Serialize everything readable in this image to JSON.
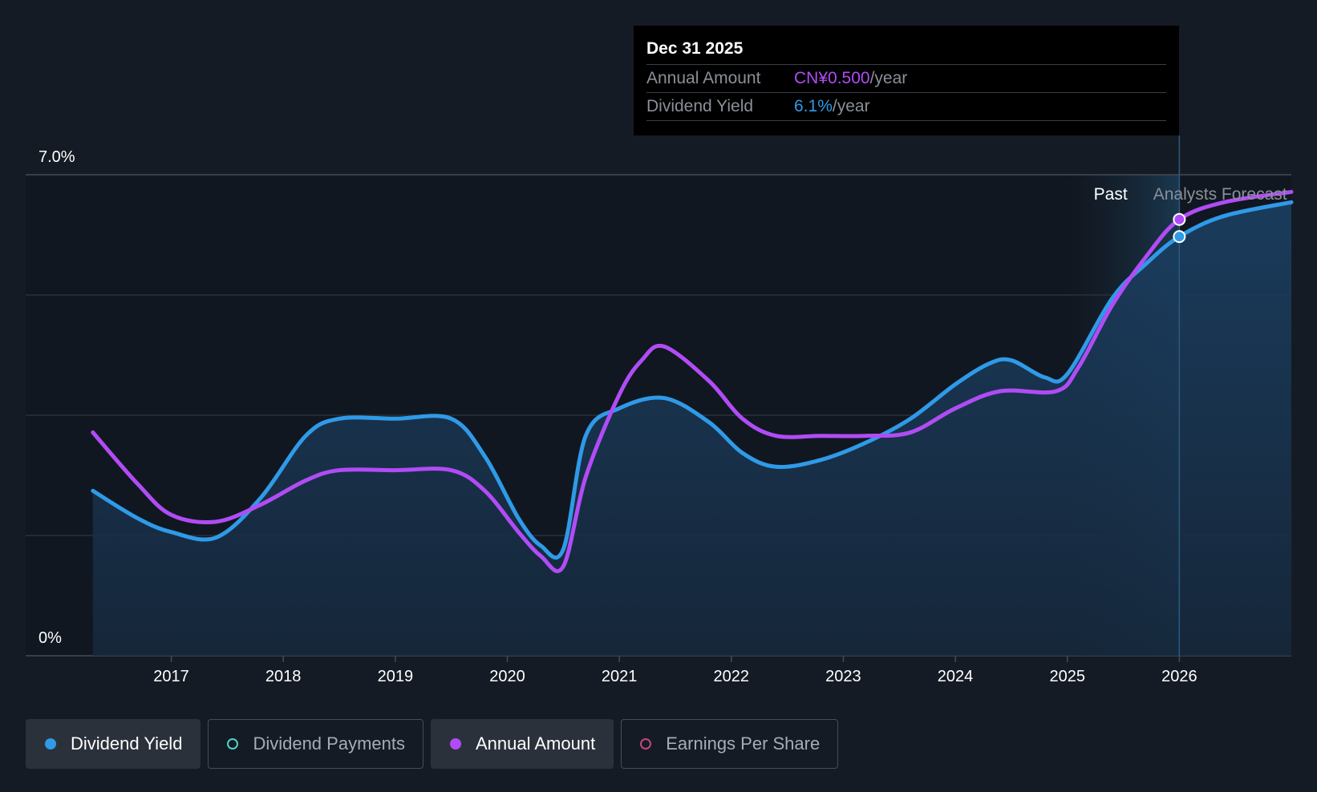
{
  "colors": {
    "background": "#151b24",
    "yield": "#2f9ae8",
    "amount": "#b04cf5",
    "payments": "#4fd1c5",
    "eps": "#c2467a"
  },
  "tooltip": {
    "date": "Dec 31 2025",
    "rows": [
      {
        "label": "Annual Amount",
        "value": "CN¥0.500",
        "unit": "/year"
      },
      {
        "label": "Dividend Yield",
        "value": "6.1%",
        "unit": "/year"
      }
    ]
  },
  "regions": {
    "past_label": "Past",
    "forecast_label": "Analysts Forecast"
  },
  "legend": [
    {
      "label": "Dividend Yield",
      "icon": "filled-dot",
      "color": "#2f9ae8",
      "active": true
    },
    {
      "label": "Dividend Payments",
      "icon": "hollow-dot",
      "color": "#4fd1c5",
      "active": false
    },
    {
      "label": "Annual Amount",
      "icon": "filled-dot",
      "color": "#b04cf5",
      "active": true
    },
    {
      "label": "Earnings Per Share",
      "icon": "hollow-dot",
      "color": "#c2467a",
      "active": false
    }
  ],
  "chart_data": {
    "type": "line",
    "ylim": [
      0,
      7.0
    ],
    "xlim": [
      2015.7,
      2027.0
    ],
    "y_tick_labels": [
      "7.0%",
      "0%"
    ],
    "x_tick_labels": [
      "2017",
      "2018",
      "2019",
      "2020",
      "2021",
      "2022",
      "2023",
      "2024",
      "2025",
      "2026"
    ],
    "grid": true,
    "forecast_start": 2025.0,
    "highlight_x": 2026.0,
    "series": [
      {
        "name": "Dividend Yield",
        "unit": "%",
        "area_fill": true,
        "points": [
          [
            2016.3,
            2.4
          ],
          [
            2016.7,
            2.0
          ],
          [
            2017.0,
            1.8
          ],
          [
            2017.4,
            1.72
          ],
          [
            2017.8,
            2.3
          ],
          [
            2018.2,
            3.2
          ],
          [
            2018.5,
            3.45
          ],
          [
            2019.0,
            3.45
          ],
          [
            2019.5,
            3.45
          ],
          [
            2019.8,
            2.9
          ],
          [
            2020.1,
            2.0
          ],
          [
            2020.3,
            1.6
          ],
          [
            2020.5,
            1.55
          ],
          [
            2020.7,
            3.2
          ],
          [
            2021.0,
            3.6
          ],
          [
            2021.4,
            3.75
          ],
          [
            2021.8,
            3.4
          ],
          [
            2022.1,
            2.95
          ],
          [
            2022.4,
            2.75
          ],
          [
            2022.8,
            2.85
          ],
          [
            2023.2,
            3.1
          ],
          [
            2023.6,
            3.45
          ],
          [
            2024.0,
            3.95
          ],
          [
            2024.3,
            4.25
          ],
          [
            2024.5,
            4.3
          ],
          [
            2024.8,
            4.05
          ],
          [
            2025.0,
            4.1
          ],
          [
            2025.4,
            5.2
          ],
          [
            2025.7,
            5.7
          ],
          [
            2026.0,
            6.1
          ],
          [
            2026.4,
            6.4
          ],
          [
            2027.0,
            6.6
          ]
        ]
      },
      {
        "name": "Annual Amount",
        "unit": "CN¥",
        "area_fill": false,
        "points": [
          [
            2016.3,
            3.25
          ],
          [
            2016.7,
            2.5
          ],
          [
            2017.0,
            2.05
          ],
          [
            2017.4,
            1.95
          ],
          [
            2017.8,
            2.2
          ],
          [
            2018.2,
            2.55
          ],
          [
            2018.5,
            2.7
          ],
          [
            2019.0,
            2.7
          ],
          [
            2019.5,
            2.7
          ],
          [
            2019.8,
            2.4
          ],
          [
            2020.1,
            1.8
          ],
          [
            2020.3,
            1.45
          ],
          [
            2020.5,
            1.3
          ],
          [
            2020.7,
            2.6
          ],
          [
            2021.0,
            3.8
          ],
          [
            2021.2,
            4.3
          ],
          [
            2021.4,
            4.5
          ],
          [
            2021.8,
            4.0
          ],
          [
            2022.1,
            3.45
          ],
          [
            2022.4,
            3.2
          ],
          [
            2022.8,
            3.2
          ],
          [
            2023.2,
            3.2
          ],
          [
            2023.6,
            3.25
          ],
          [
            2024.0,
            3.6
          ],
          [
            2024.4,
            3.85
          ],
          [
            2024.9,
            3.85
          ],
          [
            2025.1,
            4.2
          ],
          [
            2025.4,
            5.1
          ],
          [
            2025.7,
            5.8
          ],
          [
            2026.0,
            6.35
          ],
          [
            2026.4,
            6.6
          ],
          [
            2027.0,
            6.75
          ]
        ]
      }
    ]
  }
}
